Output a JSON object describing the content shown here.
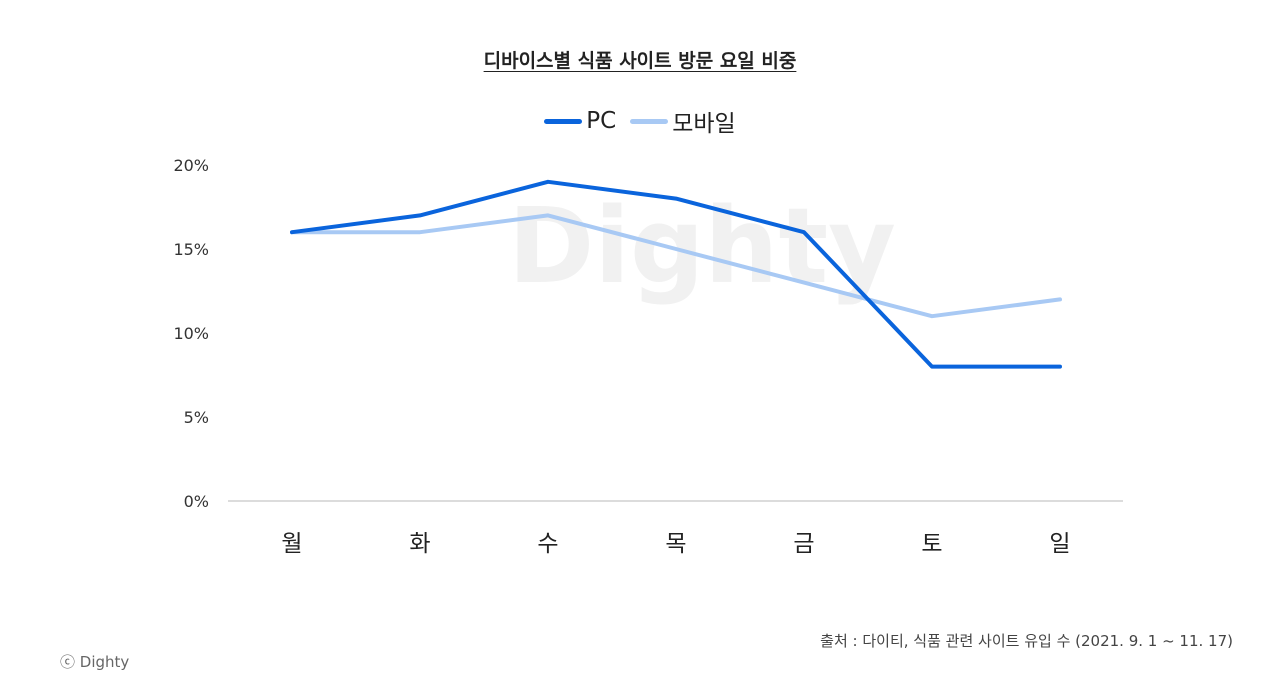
{
  "chart_data": {
    "type": "line",
    "title": "디바이스별 식품 사이트 방문 요일 비중",
    "categories": [
      "월",
      "화",
      "수",
      "목",
      "금",
      "토",
      "일"
    ],
    "series": [
      {
        "name": "PC",
        "values": [
          16,
          17,
          19,
          18,
          16,
          8,
          8
        ],
        "color": "#0a64dc"
      },
      {
        "name": "모바일",
        "values": [
          16,
          16,
          17,
          15,
          13,
          11,
          12
        ],
        "color": "#a8c9f4"
      }
    ],
    "ylim": [
      0,
      20
    ],
    "yticks": [
      "0%",
      "5%",
      "10%",
      "15%",
      "20%"
    ],
    "ytick_values": [
      0,
      5,
      10,
      15,
      20
    ],
    "grid": false,
    "legend_position": "top-center"
  },
  "watermark": "Dighty",
  "source": "출처 : 다이티, 식품 관련 사이트 유입 수 (2021. 9. 1 ~ 11. 17)",
  "copyright": "ⓒ Dighty"
}
